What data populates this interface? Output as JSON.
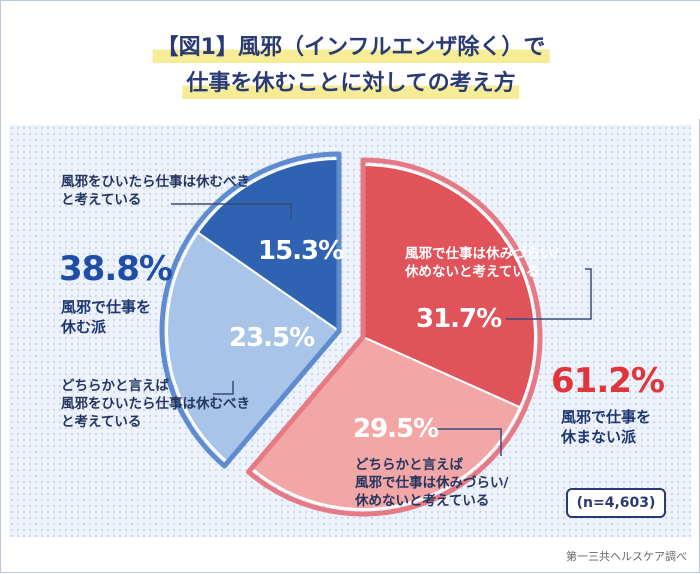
{
  "title": {
    "line1": "【図1】風邪（インフルエンザ除く）で",
    "line2": "仕事を休むことに対しての考え方"
  },
  "chart_data": {
    "type": "pie",
    "title": "【図1】風邪（インフルエンザ除く）で仕事を休むことに対しての考え方",
    "slices": [
      {
        "label": "風邪で仕事は休みづらい/休めないと考えている",
        "value": 31.7,
        "value_label": "31.7%",
        "color": "#e0535b",
        "group": "休まない派"
      },
      {
        "label": "どちらかと言えば風邪で仕事は休みづらい/休めないと考えている",
        "value": 29.5,
        "value_label": "29.5%",
        "color": "#f3a6a6",
        "group": "休まない派"
      },
      {
        "label": "どちらかと言えば風邪をひいたら仕事は休むべきと考えている",
        "value": 23.5,
        "value_label": "23.5%",
        "color": "#a8c4e8",
        "group": "休む派"
      },
      {
        "label": "風邪をひいたら仕事は休むべきと考えている",
        "value": 15.3,
        "value_label": "15.3%",
        "color": "#2f62b1",
        "group": "休む派"
      }
    ],
    "groups": [
      {
        "name": "風邪で仕事を休む派",
        "total": 38.8,
        "total_label": "38.8%",
        "color": "#1e4ea8"
      },
      {
        "name": "風邪で仕事を休まない派",
        "total": 61.2,
        "total_label": "61.2%",
        "color": "#e0353a"
      }
    ],
    "sample": "(n=4,603)"
  },
  "labels": {
    "s1a": "風邪で仕事は休みづらい/",
    "s1b": "休めないと考えている",
    "s2a": "どちらかと言えば",
    "s2b": "風邪で仕事は休みづらい/",
    "s2c": "休めないと考えている",
    "s3a": "どちらかと言えば",
    "s3b": "風邪をひいたら仕事は休むべき",
    "s3c": "と考えている",
    "s4a": "風邪をひいたら仕事は休むべき",
    "s4b": "と考えている"
  },
  "groups_text": {
    "blue_pct": "38.8%",
    "blue_a": "風邪で仕事を",
    "blue_b": "休む派",
    "red_pct": "61.2%",
    "red_a": "風邪で仕事を",
    "red_b": "休まない派"
  },
  "sample_text": "(n=4,603)",
  "credit": "第一三共ヘルスケア調べ"
}
